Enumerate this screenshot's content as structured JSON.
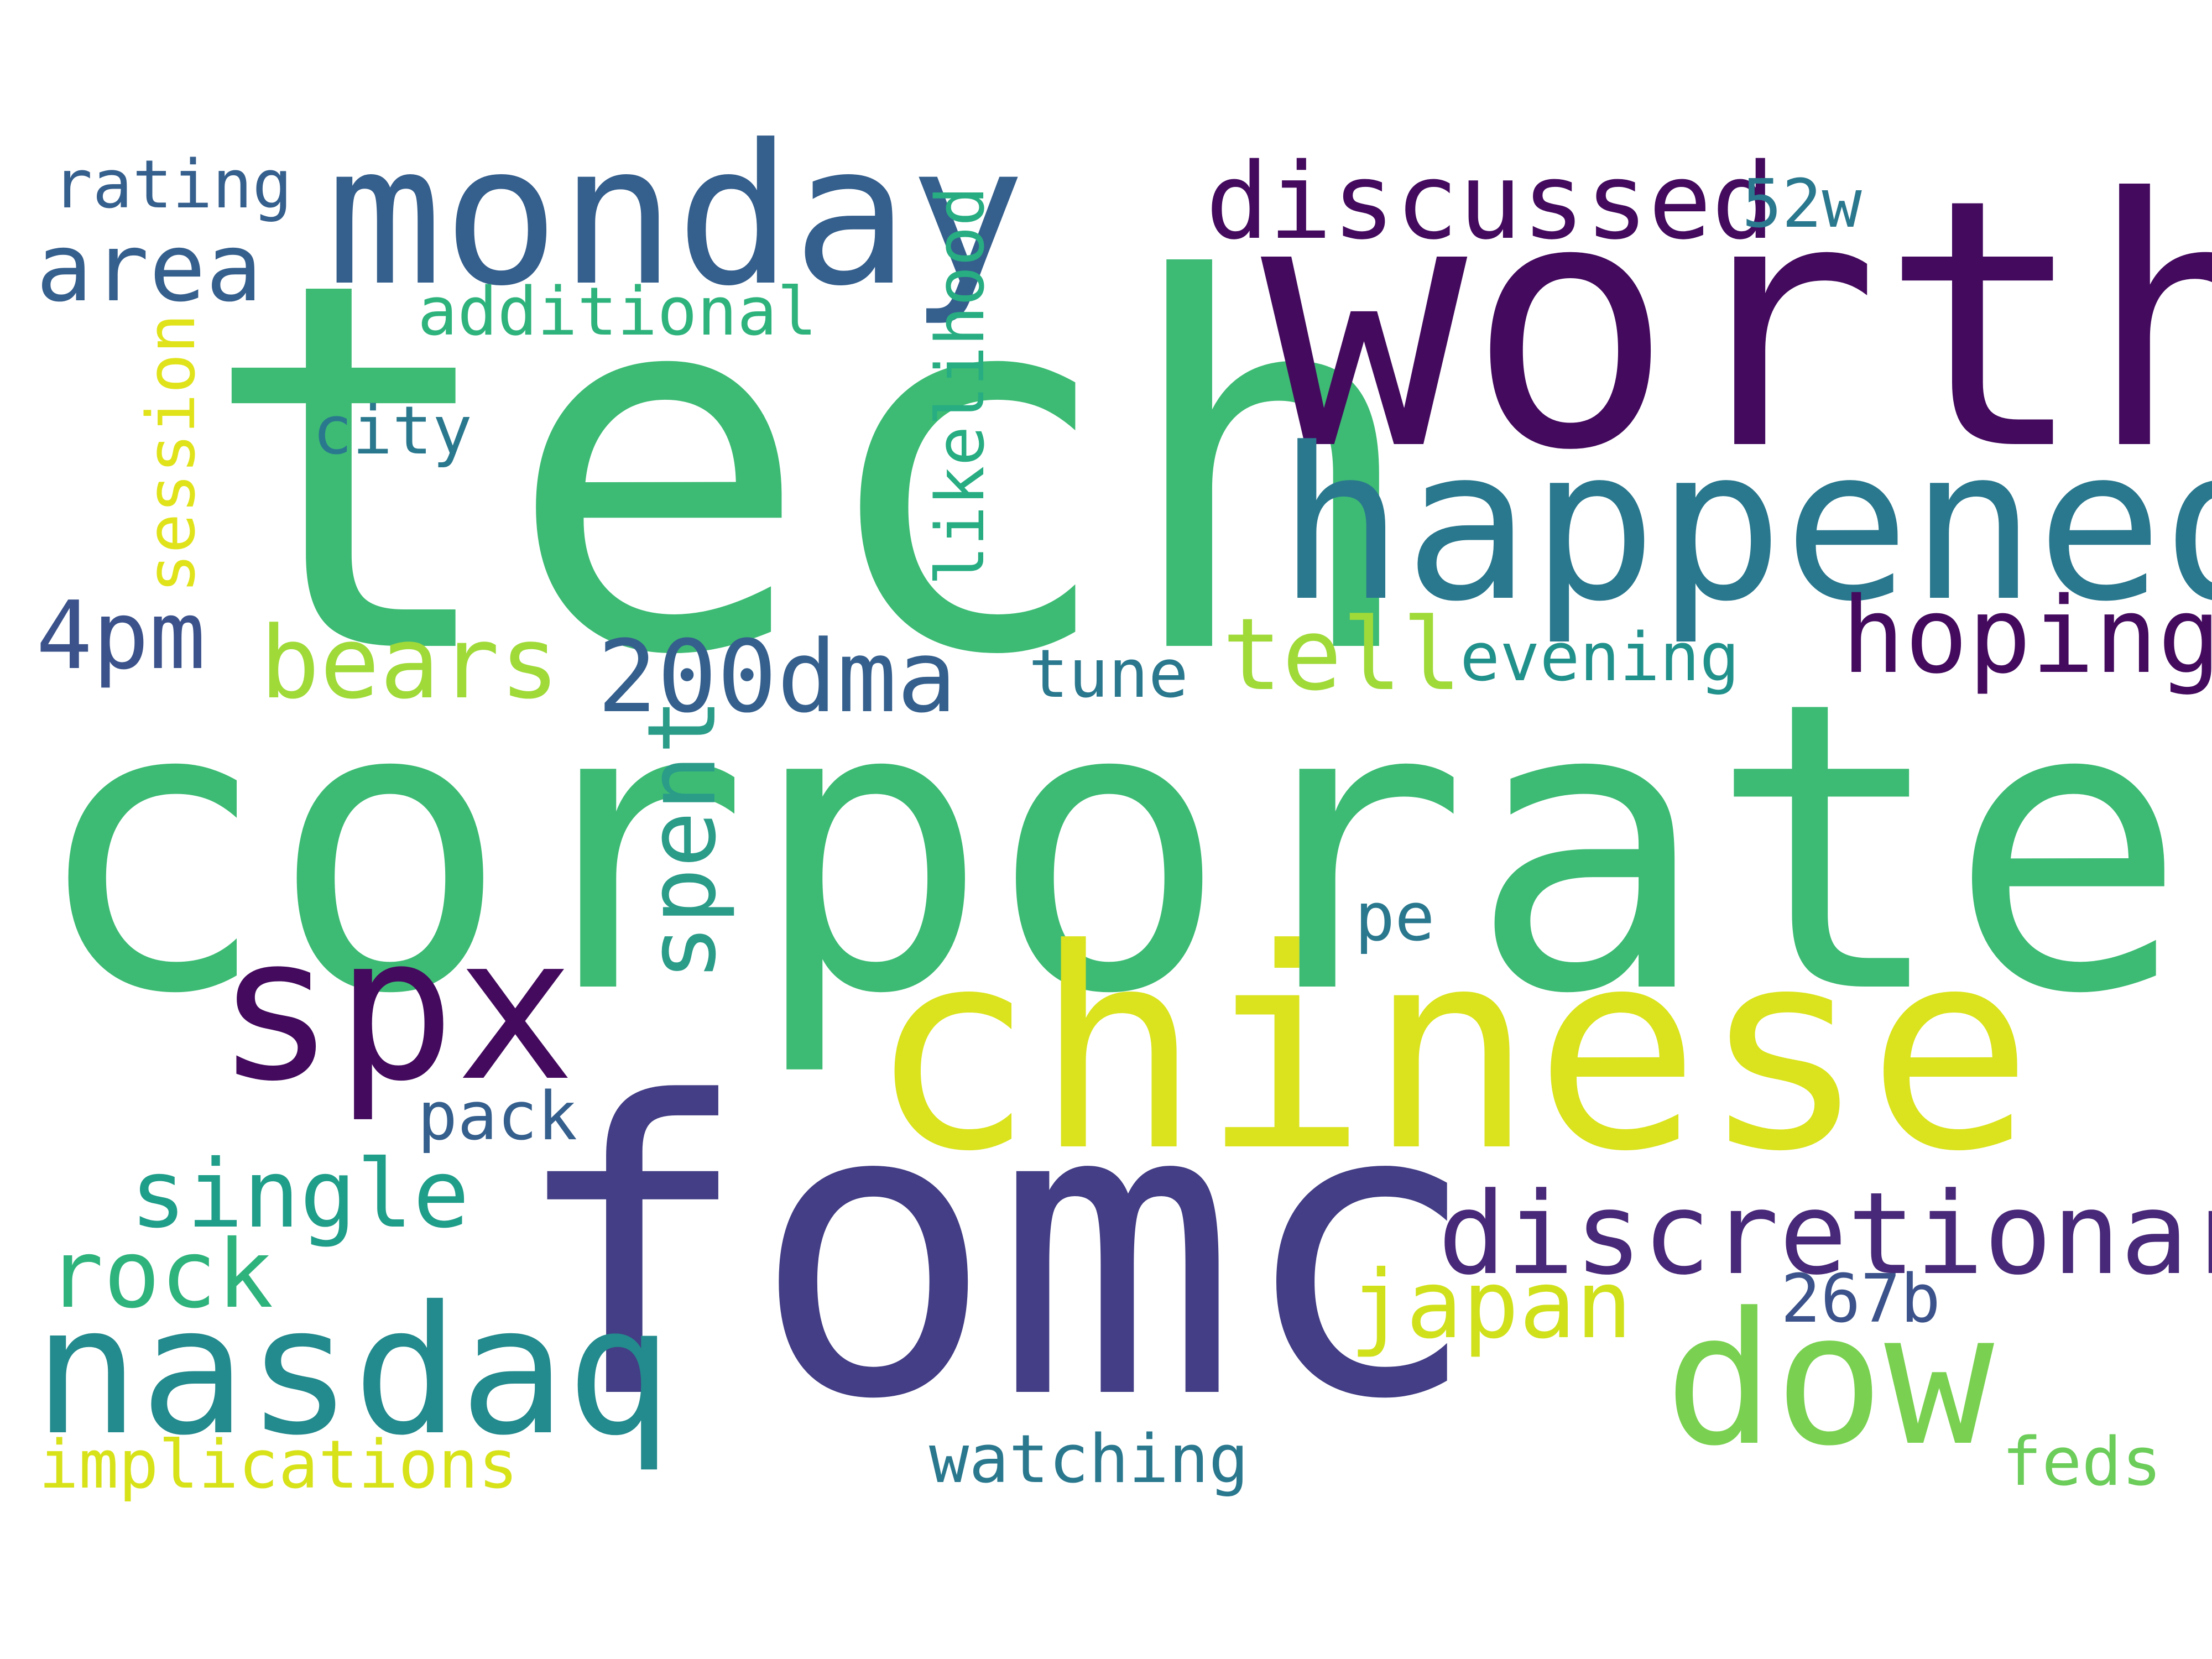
{
  "words": {
    "tech": "tech",
    "corporate": "corporate",
    "worth": "worth",
    "fomc": "fomc",
    "chinese": "chinese",
    "happened": "happened",
    "monday": "monday",
    "spx": "spx",
    "nasdaq": "nasdaq",
    "dow": "dow",
    "discretionary": "discretionary",
    "discussed": "discussed",
    "hoping": "hoping",
    "bears": "bears",
    "200dma": "200dma",
    "tell": "tell",
    "area": "area",
    "4pm": "4pm",
    "single": "single",
    "rock": "rock",
    "japan": "japan",
    "spent": "spent",
    "rating": "rating",
    "additional": "additional",
    "city": "city",
    "52w": "52w",
    "evening": "evening",
    "tune": "tune",
    "pack": "pack",
    "pe": "pe",
    "267b": "267b",
    "implications": "implications",
    "watching": "watching",
    "feds": "feds",
    "likelihood": "likelihood",
    "session": "session"
  },
  "colors": {
    "background": "#ffffff",
    "palette": "viridis"
  }
}
